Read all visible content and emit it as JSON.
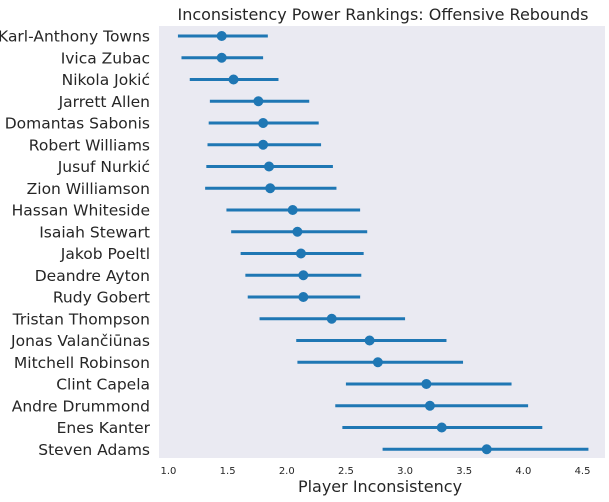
{
  "chart_data": {
    "type": "pointplot",
    "title": "Inconsistency Power Rankings: Offensive Rebounds",
    "xlabel": "Player Inconsistency",
    "ylabel": "",
    "xlim": [
      0.92,
      4.69
    ],
    "xticks": [
      1.0,
      1.5,
      2.0,
      2.5,
      3.0,
      3.5,
      4.0,
      4.5
    ],
    "xtick_labels": [
      "1.0",
      "1.5",
      "2.0",
      "2.5",
      "3.0",
      "3.5",
      "4.0",
      "4.5"
    ],
    "grid": false,
    "color": "#1f77b4",
    "background": "#eaeaf2",
    "players": [
      {
        "name": "Karl-Anthony Towns",
        "value": 1.45,
        "low": 1.08,
        "high": 1.84
      },
      {
        "name": "Ivica Zubac",
        "value": 1.45,
        "low": 1.11,
        "high": 1.8
      },
      {
        "name": "Nikola Jokić",
        "value": 1.55,
        "low": 1.18,
        "high": 1.93
      },
      {
        "name": "Jarrett Allen",
        "value": 1.76,
        "low": 1.35,
        "high": 2.19
      },
      {
        "name": "Domantas Sabonis",
        "value": 1.8,
        "low": 1.34,
        "high": 2.27
      },
      {
        "name": "Robert Williams",
        "value": 1.8,
        "low": 1.33,
        "high": 2.29
      },
      {
        "name": "Jusuf Nurkić",
        "value": 1.85,
        "low": 1.32,
        "high": 2.39
      },
      {
        "name": "Zion Williamson",
        "value": 1.86,
        "low": 1.31,
        "high": 2.42
      },
      {
        "name": "Hassan Whiteside",
        "value": 2.05,
        "low": 1.49,
        "high": 2.62
      },
      {
        "name": "Isaiah Stewart",
        "value": 2.09,
        "low": 1.53,
        "high": 2.68
      },
      {
        "name": "Jakob Poeltl",
        "value": 2.12,
        "low": 1.61,
        "high": 2.65
      },
      {
        "name": "Deandre Ayton",
        "value": 2.14,
        "low": 1.65,
        "high": 2.63
      },
      {
        "name": "Rudy Gobert",
        "value": 2.14,
        "low": 1.67,
        "high": 2.62
      },
      {
        "name": "Tristan Thompson",
        "value": 2.38,
        "low": 1.77,
        "high": 3.0
      },
      {
        "name": "Jonas Valančiūnas",
        "value": 2.7,
        "low": 2.08,
        "high": 3.35
      },
      {
        "name": "Mitchell Robinson",
        "value": 2.77,
        "low": 2.09,
        "high": 3.49
      },
      {
        "name": "Clint Capela",
        "value": 3.18,
        "low": 2.5,
        "high": 3.9
      },
      {
        "name": "Andre Drummond",
        "value": 3.21,
        "low": 2.41,
        "high": 4.04
      },
      {
        "name": "Enes Kanter",
        "value": 3.31,
        "low": 2.47,
        "high": 4.16
      },
      {
        "name": "Steven Adams",
        "value": 3.69,
        "low": 2.81,
        "high": 4.55
      }
    ]
  }
}
